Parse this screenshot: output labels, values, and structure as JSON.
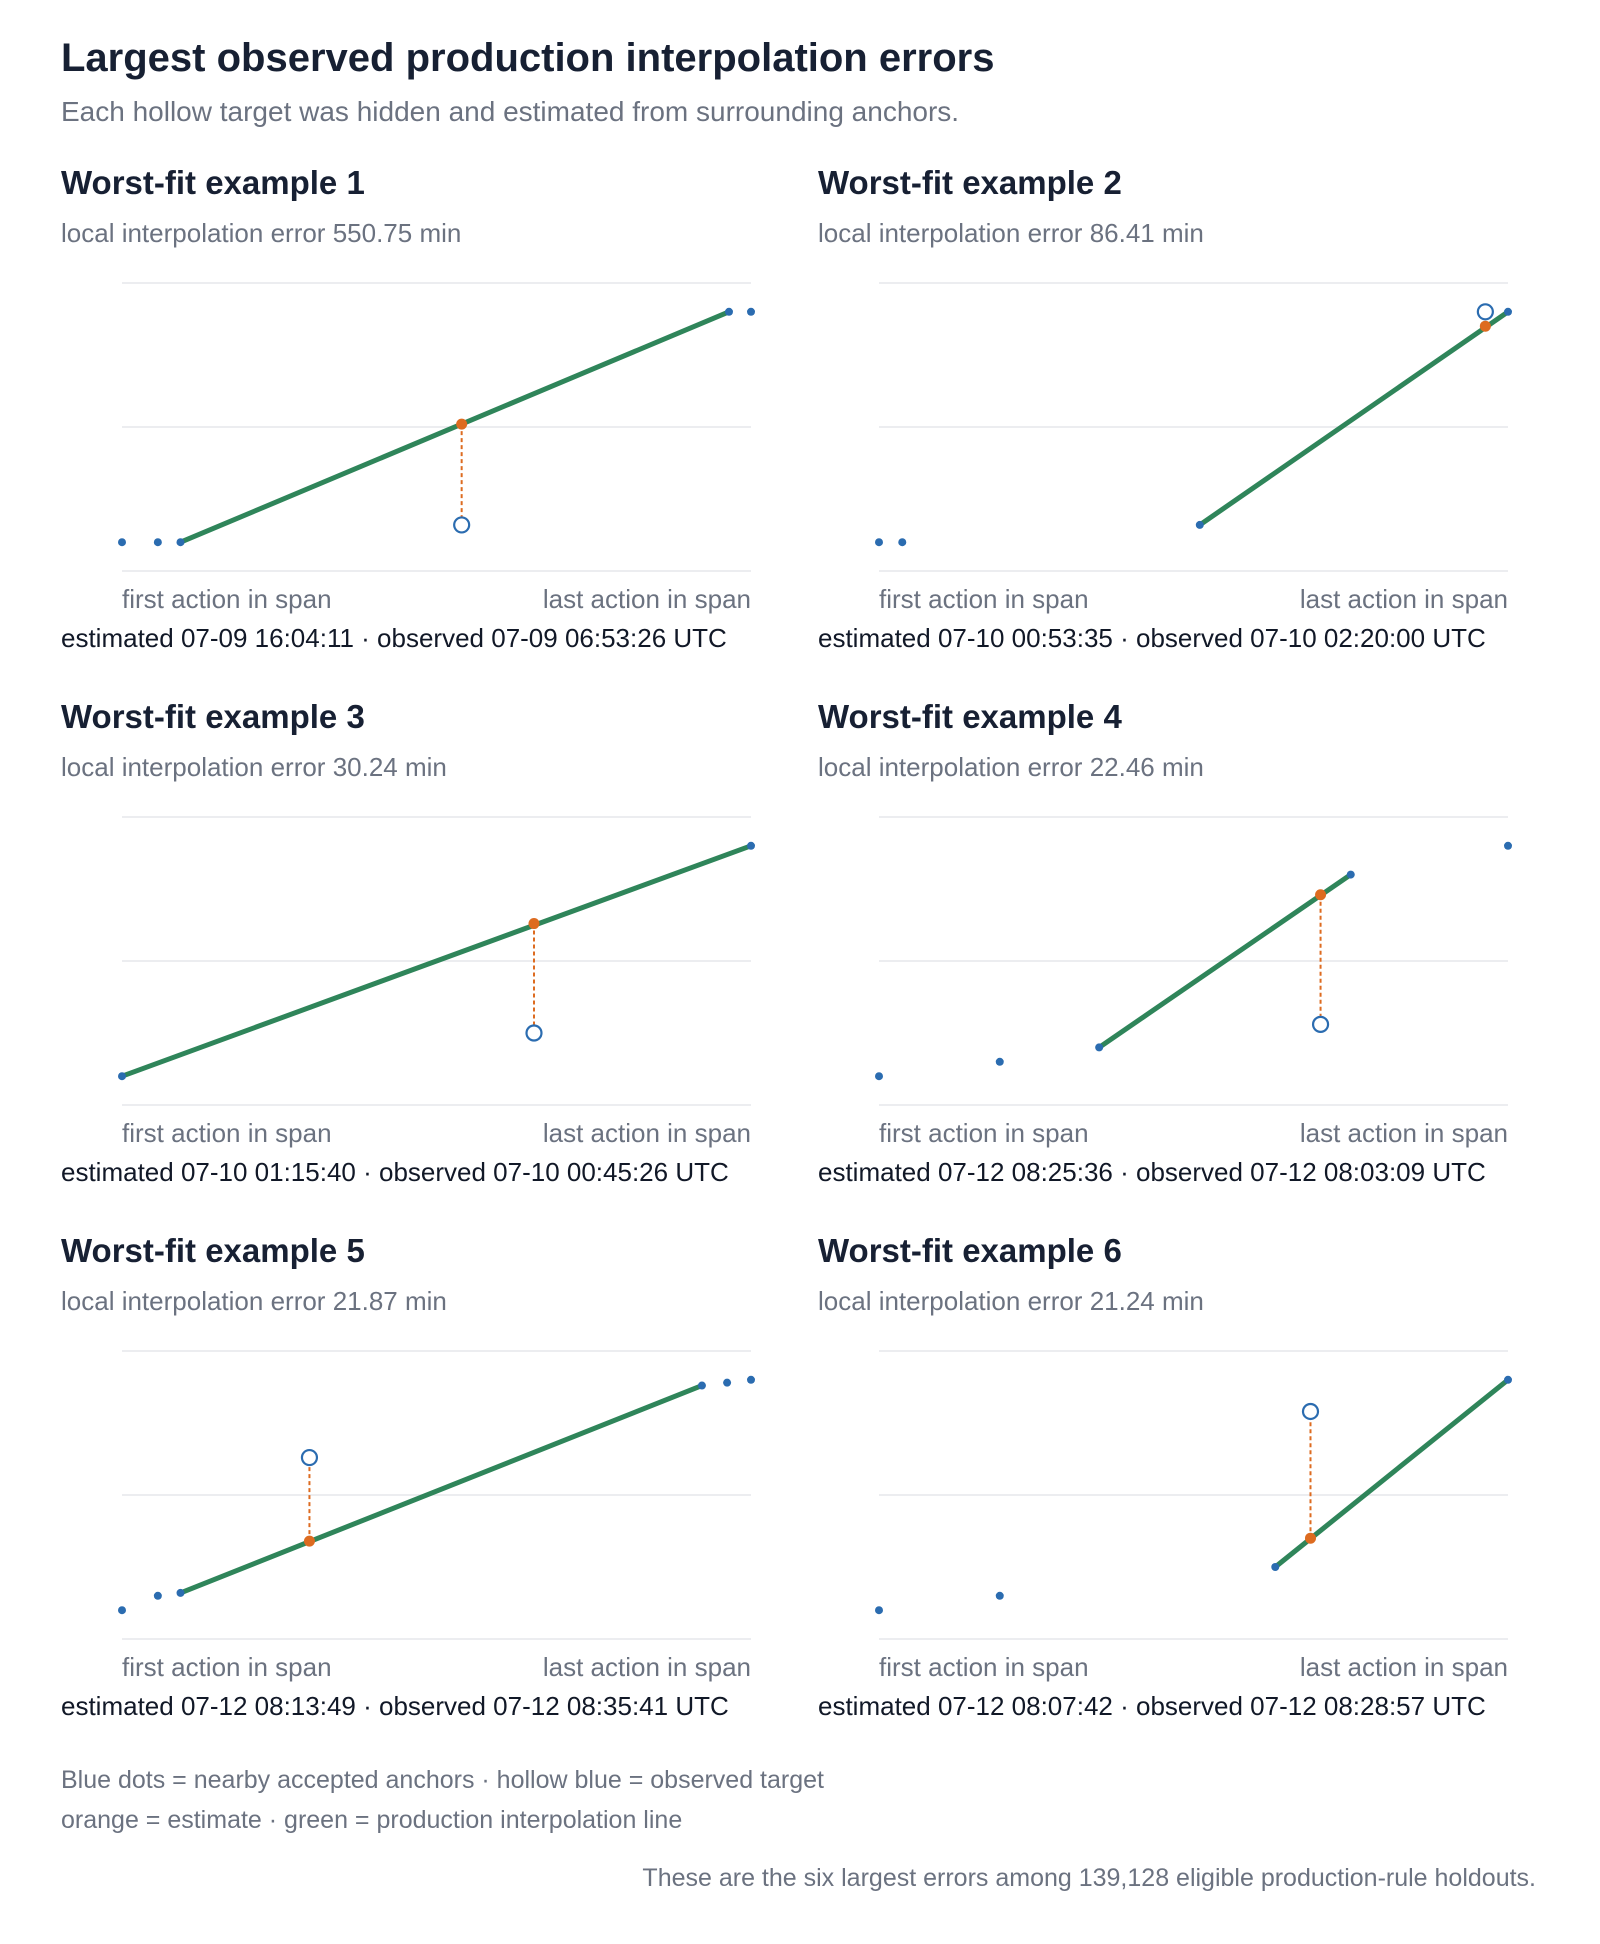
{
  "header": {
    "title": "Largest observed production interpolation errors",
    "subtitle": "Each hollow target was hidden and estimated from surrounding anchors."
  },
  "colors": {
    "anchor": "#2b6cb0",
    "target_stroke": "#2b6cb0",
    "estimate": "#dd6b20",
    "line": "#2f855a",
    "grid": "#e5e7eb",
    "axis_label": "#6b7280"
  },
  "chart_data": [
    {
      "type": "scatter",
      "title": "Worst-fit example 1",
      "subtitle": "local interpolation error 550.75 min",
      "x_start_label": "first action in span",
      "x_end_label": "last action in span",
      "caption": "estimated 07-09 16:04:11 · observed 07-09 06:53:26 UTC",
      "anchors": [
        [
          0,
          0.1
        ],
        [
          0.057,
          0.1
        ],
        [
          0.093,
          0.1
        ],
        [
          0.965,
          0.9
        ],
        [
          1.0,
          0.9
        ]
      ],
      "line": [
        [
          0.093,
          0.1
        ],
        [
          0.965,
          0.9
        ]
      ],
      "estimate": [
        0.54,
        0.51
      ],
      "target": [
        0.54,
        0.16
      ]
    },
    {
      "type": "scatter",
      "title": "Worst-fit example 2",
      "subtitle": "local interpolation error 86.41 min",
      "x_start_label": "first action in span",
      "x_end_label": "last action in span",
      "caption": "estimated 07-10 00:53:35 · observed 07-10 02:20:00 UTC",
      "anchors": [
        [
          0,
          0.1
        ],
        [
          0.037,
          0.1
        ],
        [
          0.51,
          0.16
        ],
        [
          1.0,
          0.9
        ]
      ],
      "line": [
        [
          0.51,
          0.16
        ],
        [
          1.0,
          0.9
        ]
      ],
      "estimate": [
        0.964,
        0.85
      ],
      "target": [
        0.964,
        0.9
      ]
    },
    {
      "type": "scatter",
      "title": "Worst-fit example 3",
      "subtitle": "local interpolation error 30.24 min",
      "x_start_label": "first action in span",
      "x_end_label": "last action in span",
      "caption": "estimated 07-10 01:15:40 · observed 07-10 00:45:26 UTC",
      "anchors": [
        [
          0,
          0.1
        ],
        [
          1.0,
          0.9
        ]
      ],
      "line": [
        [
          0,
          0.1
        ],
        [
          1.0,
          0.9
        ]
      ],
      "estimate": [
        0.655,
        0.63
      ],
      "target": [
        0.655,
        0.25
      ]
    },
    {
      "type": "scatter",
      "title": "Worst-fit example 4",
      "subtitle": "local interpolation error 22.46 min",
      "x_start_label": "first action in span",
      "x_end_label": "last action in span",
      "caption": "estimated 07-12 08:25:36 · observed 07-12 08:03:09 UTC",
      "anchors": [
        [
          0,
          0.1
        ],
        [
          0.192,
          0.15
        ],
        [
          0.35,
          0.2
        ],
        [
          0.75,
          0.8
        ],
        [
          1.0,
          0.9
        ]
      ],
      "line": [
        [
          0.35,
          0.2
        ],
        [
          0.75,
          0.8
        ]
      ],
      "estimate": [
        0.702,
        0.73
      ],
      "target": [
        0.702,
        0.28
      ]
    },
    {
      "type": "scatter",
      "title": "Worst-fit example 5",
      "subtitle": "local interpolation error 21.87 min",
      "x_start_label": "first action in span",
      "x_end_label": "last action in span",
      "caption": "estimated 07-12 08:13:49 · observed 07-12 08:35:41 UTC",
      "anchors": [
        [
          0,
          0.1
        ],
        [
          0.057,
          0.15
        ],
        [
          0.093,
          0.16
        ],
        [
          0.922,
          0.88
        ],
        [
          0.962,
          0.89
        ],
        [
          1.0,
          0.9
        ]
      ],
      "line": [
        [
          0.093,
          0.16
        ],
        [
          0.922,
          0.88
        ]
      ],
      "estimate": [
        0.298,
        0.34
      ],
      "target": [
        0.298,
        0.63
      ]
    },
    {
      "type": "scatter",
      "title": "Worst-fit example 6",
      "subtitle": "local interpolation error 21.24 min",
      "x_start_label": "first action in span",
      "x_end_label": "last action in span",
      "caption": "estimated 07-12 08:07:42 · observed 07-12 08:28:57 UTC",
      "anchors": [
        [
          0,
          0.1
        ],
        [
          0.192,
          0.15
        ],
        [
          0.63,
          0.25
        ],
        [
          1.0,
          0.9
        ]
      ],
      "line": [
        [
          0.63,
          0.25
        ],
        [
          1.0,
          0.9
        ]
      ],
      "estimate": [
        0.686,
        0.35
      ],
      "target": [
        0.686,
        0.79
      ]
    }
  ],
  "legend": {
    "line1": "Blue dots = nearby accepted anchors · hollow blue = observed target",
    "line2": "orange = estimate · green = production interpolation line"
  },
  "footnote": "These are the six largest errors among 139,128 eligible production-rule holdouts."
}
